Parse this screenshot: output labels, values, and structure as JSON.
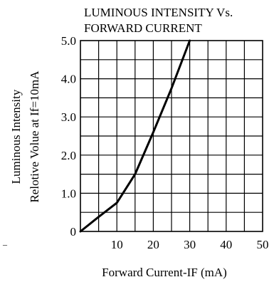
{
  "chart_data": {
    "type": "line",
    "title_lines": [
      "LUMINOUS INTENSITY Vs.",
      "FORWARD CURRENT"
    ],
    "ylabel_lines": [
      "Luminous Intensity",
      "Relotive Volue at If=10mA"
    ],
    "xlabel": "Forward Current-IF (mA)",
    "xlim": [
      0,
      50
    ],
    "ylim": [
      0,
      5
    ],
    "x_ticks": [
      {
        "value": 10,
        "label": "10"
      },
      {
        "value": 20,
        "label": "20"
      },
      {
        "value": 30,
        "label": "30"
      },
      {
        "value": 40,
        "label": "40"
      },
      {
        "value": 50,
        "label": "50"
      }
    ],
    "y_ticks": [
      {
        "value": 0,
        "label": "0"
      },
      {
        "value": 1,
        "label": "1.0"
      },
      {
        "value": 2,
        "label": "2.0"
      },
      {
        "value": 3,
        "label": "3.0"
      },
      {
        "value": 4,
        "label": "4.0"
      },
      {
        "value": 5,
        "label": "5.0"
      }
    ],
    "grid": {
      "x_step": 5,
      "y_step": 0.5,
      "on": true
    },
    "series": [
      {
        "x": [
          0,
          5,
          10,
          15,
          20,
          25,
          30
        ],
        "y": [
          0,
          0.38,
          0.75,
          1.5,
          2.6,
          3.75,
          5.0
        ]
      }
    ],
    "colors": {
      "line": "#000000",
      "grid": "#000000",
      "background": "#ffffff"
    }
  }
}
